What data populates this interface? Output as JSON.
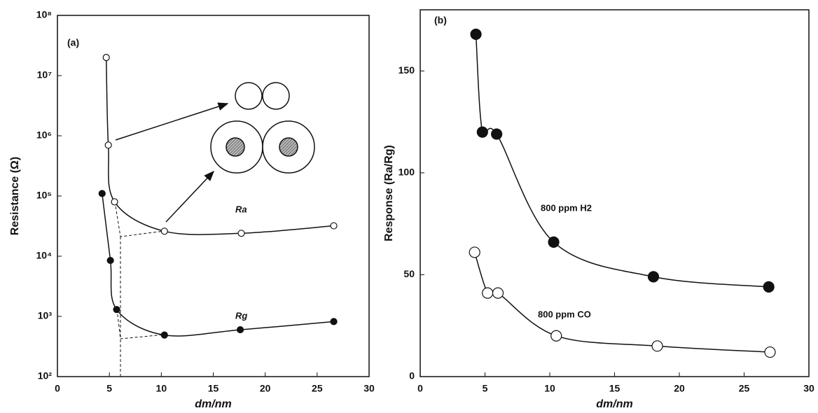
{
  "chart_data": [
    {
      "type": "line",
      "title": "(a)",
      "xlabel": "dm/nm",
      "ylabel": "Resistance (Ω)",
      "log_y": true,
      "xlim": [
        0,
        30
      ],
      "xticks": [
        0,
        5,
        10,
        15,
        20,
        25,
        30
      ],
      "ylim": [
        100,
        100000000
      ],
      "yticks": [
        {
          "value": 100,
          "label": "10²"
        },
        {
          "value": 1000,
          "label": "10³"
        },
        {
          "value": 10000,
          "label": "10⁴"
        },
        {
          "value": 100000,
          "label": "10⁵"
        },
        {
          "value": 1000000,
          "label": "10⁶"
        },
        {
          "value": 10000000,
          "label": "10⁷"
        },
        {
          "value": 100000000,
          "label": "10⁸"
        }
      ],
      "series": [
        {
          "name": "Ra",
          "color": "#111111",
          "marker_fill": "#ffffff",
          "x": [
            4.7,
            4.9,
            5.5,
            10.3,
            17.7,
            26.6
          ],
          "values": [
            20000000,
            700000,
            80000,
            26000,
            24000,
            32000
          ]
        },
        {
          "name": "Rg",
          "color": "#111111",
          "marker_fill": "#111111",
          "x": [
            4.3,
            5.1,
            5.7,
            10.3,
            17.6,
            26.6
          ],
          "values": [
            110000,
            8500,
            1300,
            490,
            600,
            820
          ]
        }
      ]
    },
    {
      "type": "line",
      "title": "(b)",
      "xlabel": "dm/nm",
      "ylabel": "Response (Ra/Rg)",
      "log_y": false,
      "xlim": [
        0,
        30
      ],
      "xticks": [
        0,
        5,
        10,
        15,
        20,
        25,
        30
      ],
      "ylim": [
        0,
        180
      ],
      "yticks": [
        0,
        50,
        100,
        150
      ],
      "series": [
        {
          "name": "800 ppm H2",
          "color": "#111111",
          "marker_fill": "#111111",
          "x": [
            4.3,
            4.8,
            5.9,
            10.3,
            18,
            26.9
          ],
          "values": [
            168,
            120,
            119,
            66,
            49,
            44
          ]
        },
        {
          "name": "800 ppm CO",
          "color": "#111111",
          "marker_fill": "#ffffff",
          "x": [
            4.2,
            5.2,
            6,
            10.5,
            18.3,
            27
          ],
          "values": [
            61,
            41,
            41,
            20,
            15,
            12
          ]
        }
      ]
    }
  ]
}
